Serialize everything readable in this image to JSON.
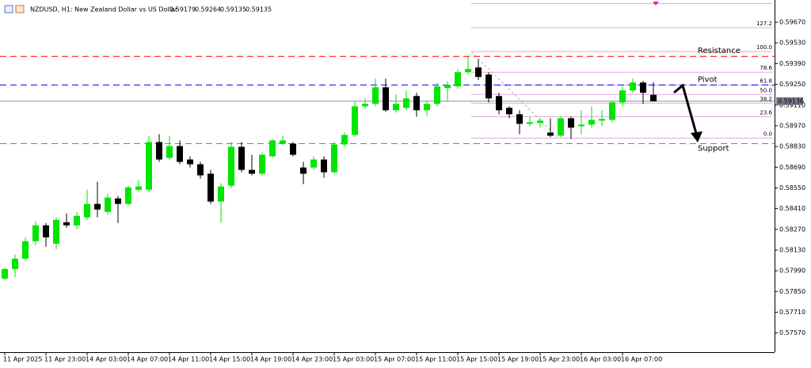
{
  "chart_data": {
    "type": "candlestick",
    "title": "NZDUSD, H1:  New Zealand Dollar vs US Dollar",
    "categories": [
      "11 Apr 2025",
      null,
      null,
      null,
      "11 Apr 23:00",
      null,
      null,
      null,
      "14 Apr 03:00",
      null,
      null,
      null,
      "14 Apr 07:00",
      null,
      null,
      null,
      "14 Apr 11:00",
      null,
      null,
      null,
      "14 Apr 15:00",
      null,
      null,
      null,
      "14 Apr 19:00",
      null,
      null,
      null,
      "14 Apr 23:00",
      null,
      null,
      null,
      "15 Apr 03:00",
      null,
      null,
      null,
      "15 Apr 07:00",
      null,
      null,
      null,
      "15 Apr 11:00",
      null,
      null,
      null,
      "15 Apr 15:00",
      null,
      null,
      null,
      "15 Apr 19:00",
      null,
      null,
      null,
      "15 Apr 23:00",
      null,
      null,
      null,
      "16 Apr 03:00",
      null,
      null,
      null,
      "16 Apr 07:00",
      null,
      null,
      null
    ],
    "open": [
      0.57937,
      0.58002,
      0.58072,
      0.5819,
      0.58297,
      0.58173,
      0.58318,
      0.58297,
      0.58351,
      0.58442,
      0.58388,
      0.58479,
      0.58442,
      0.58538,
      0.58538,
      0.5886,
      0.58753,
      0.58833,
      0.58742,
      0.5871,
      0.58646,
      0.58458,
      0.58565,
      0.58828,
      0.58672,
      0.58646,
      0.58764,
      0.58849,
      0.58849,
      0.58688,
      0.58688,
      0.58742,
      0.58656,
      0.58844,
      0.58908,
      0.59101,
      0.59118,
      0.5923,
      0.59075,
      0.59091,
      0.59171,
      0.59075,
      0.59118,
      0.59225,
      0.59236,
      0.59332,
      0.59364,
      0.59316,
      0.59171,
      0.59091,
      0.59048,
      0.58983,
      0.58989,
      0.58924,
      0.58903,
      0.59021,
      0.58967,
      0.58978,
      0.59005,
      0.5901,
      0.59128,
      0.59209,
      0.59262,
      0.59179
    ],
    "high": [
      0.58013,
      0.58099,
      0.58216,
      0.58324,
      0.58313,
      0.58351,
      0.58377,
      0.58388,
      0.58538,
      0.58592,
      0.58511,
      0.58495,
      0.58565,
      0.58603,
      0.58903,
      0.58913,
      0.58903,
      0.58871,
      0.58764,
      0.58726,
      0.58672,
      0.58581,
      0.5886,
      0.5886,
      0.58774,
      0.5879,
      0.58881,
      0.58903,
      0.5886,
      0.58726,
      0.58764,
      0.58764,
      0.5886,
      0.58924,
      0.59139,
      0.59155,
      0.59289,
      0.59289,
      0.59182,
      0.59209,
      0.59193,
      0.59139,
      0.59262,
      0.59273,
      0.59354,
      0.59439,
      0.59418,
      0.59332,
      0.59193,
      0.59101,
      0.59075,
      0.59032,
      0.59021,
      0.59021,
      0.59032,
      0.59032,
      0.59075,
      0.59101,
      0.59075,
      0.59139,
      0.59236,
      0.59289,
      0.59273,
      0.59264
    ],
    "low": [
      0.57926,
      0.57948,
      0.58056,
      0.58163,
      0.58152,
      0.58136,
      0.58281,
      0.5827,
      0.58334,
      0.58351,
      0.58367,
      0.58313,
      0.58431,
      0.58527,
      0.58522,
      0.58726,
      0.58737,
      0.5871,
      0.58688,
      0.58613,
      0.58442,
      0.58313,
      0.58549,
      0.58656,
      0.58635,
      0.58635,
      0.58753,
      0.58838,
      0.58764,
      0.58576,
      0.58672,
      0.58619,
      0.58646,
      0.58828,
      0.58892,
      0.59085,
      0.59101,
      0.59064,
      0.59059,
      0.59075,
      0.59032,
      0.59037,
      0.59101,
      0.59139,
      0.5922,
      0.59316,
      0.59279,
      0.59128,
      0.59048,
      0.59021,
      0.58913,
      0.58967,
      0.58957,
      0.58892,
      0.58892,
      0.58881,
      0.58913,
      0.58957,
      0.58967,
      0.58994,
      0.59101,
      0.59193,
      0.59118,
      0.59135
    ],
    "close": [
      0.58002,
      0.58072,
      0.5819,
      0.58297,
      0.58216,
      0.58334,
      0.58297,
      0.58361,
      0.58442,
      0.58404,
      0.58485,
      0.58442,
      0.58554,
      0.5856,
      0.5886,
      0.58742,
      0.58833,
      0.58726,
      0.5871,
      0.58635,
      0.58458,
      0.5856,
      0.58828,
      0.58672,
      0.58646,
      0.58774,
      0.58871,
      0.58871,
      0.58774,
      0.58646,
      0.58742,
      0.58656,
      0.58844,
      0.58908,
      0.59101,
      0.59118,
      0.5923,
      0.59075,
      0.59118,
      0.59155,
      0.59075,
      0.59118,
      0.59236,
      0.59246,
      0.59332,
      0.59354,
      0.593,
      0.59155,
      0.59075,
      0.59048,
      0.58983,
      0.58994,
      0.59005,
      0.58903,
      0.59021,
      0.58957,
      0.58978,
      0.5901,
      0.59016,
      0.59128,
      0.59209,
      0.59262,
      0.59193,
      0.59135
    ],
    "up_color": "#00e600",
    "down_color": "#000000",
    "ylim": [
      0.5744,
      0.5982
    ],
    "yticks": [
      {
        "value": 0.5967,
        "label": "0.59670"
      },
      {
        "value": 0.5953,
        "label": "0.59530"
      },
      {
        "value": 0.5939,
        "label": "0.59390"
      },
      {
        "value": 0.5925,
        "label": "0.59250"
      },
      {
        "value": 0.5911,
        "label": "0.59110"
      },
      {
        "value": 0.5897,
        "label": "0.58970"
      },
      {
        "value": 0.5883,
        "label": "0.58830"
      },
      {
        "value": 0.5869,
        "label": "0.58690"
      },
      {
        "value": 0.5855,
        "label": "0.58550"
      },
      {
        "value": 0.5841,
        "label": "0.58410"
      },
      {
        "value": 0.5827,
        "label": "0.58270"
      },
      {
        "value": 0.5813,
        "label": "0.58130"
      },
      {
        "value": 0.5799,
        "label": "0.57990"
      },
      {
        "value": 0.5785,
        "label": "0.57850"
      },
      {
        "value": 0.5771,
        "label": "0.57710"
      },
      {
        "value": 0.5757,
        "label": "0.57570"
      }
    ],
    "last_price": 0.59136,
    "levels": [
      {
        "name": "Resistance",
        "value": 0.59439,
        "color": "#ff0000"
      },
      {
        "name": "Pivot",
        "value": 0.59246,
        "color": "#0000ff"
      },
      {
        "name": "Support",
        "value": 0.58849,
        "color": "#22c022"
      }
    ],
    "fibonacci": {
      "color": "#e3a8e3",
      "levels": [
        {
          "value": 0.59633,
          "label": "127.2"
        },
        {
          "value": 0.59472,
          "label": "100.0"
        },
        {
          "value": 0.59332,
          "label": "78.6"
        },
        {
          "value": 0.59246,
          "label": "61.8"
        },
        {
          "value": 0.59182,
          "label": "50.0"
        },
        {
          "value": 0.59123,
          "label": "38.2"
        },
        {
          "value": 0.59032,
          "label": "23.6"
        },
        {
          "value": 0.58887,
          "label": "0.0"
        }
      ]
    }
  }
}
